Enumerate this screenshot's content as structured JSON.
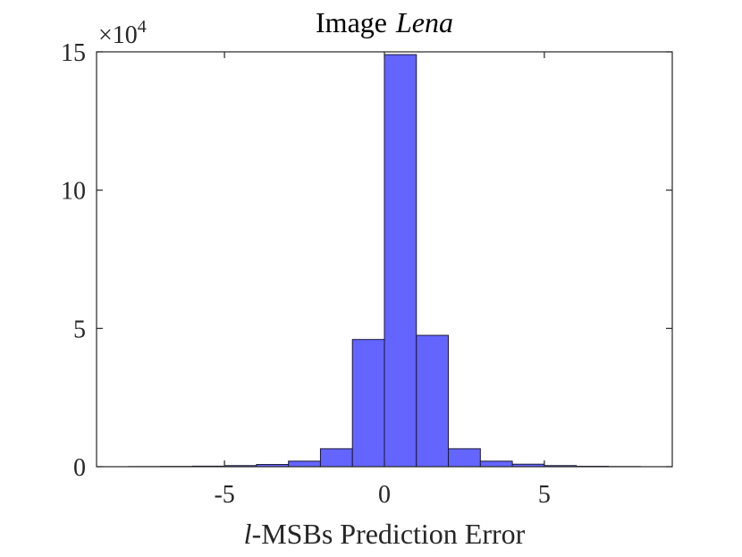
{
  "chart_data": {
    "type": "bar",
    "title_prefix": "Image",
    "title_emph": "Lena",
    "xlabel_var": "l",
    "xlabel_rest": "-MSBs Prediction Error",
    "exponent_label": "×10",
    "exponent_power": "4",
    "xlim": [
      -9,
      9
    ],
    "ylim": [
      0,
      150000
    ],
    "xticks": [
      -5,
      0,
      5
    ],
    "xtick_labels": [
      "-5",
      "0",
      "5"
    ],
    "yticks": [
      0,
      50000,
      100000,
      150000
    ],
    "ytick_labels": [
      "0",
      "5",
      "10",
      "15"
    ],
    "bin_width": 1,
    "bin_left_edges": [
      -8,
      -7,
      -6,
      -5,
      -4,
      -3,
      -2,
      -1,
      0,
      1,
      2,
      3,
      4,
      5,
      6,
      7
    ],
    "values": [
      50,
      100,
      200,
      400,
      800,
      2000,
      6500,
      46000,
      149000,
      47500,
      6500,
      2000,
      900,
      400,
      150,
      60
    ],
    "bar_color": "#6464ff",
    "edge_color": "#1a1a33",
    "grid": false
  }
}
